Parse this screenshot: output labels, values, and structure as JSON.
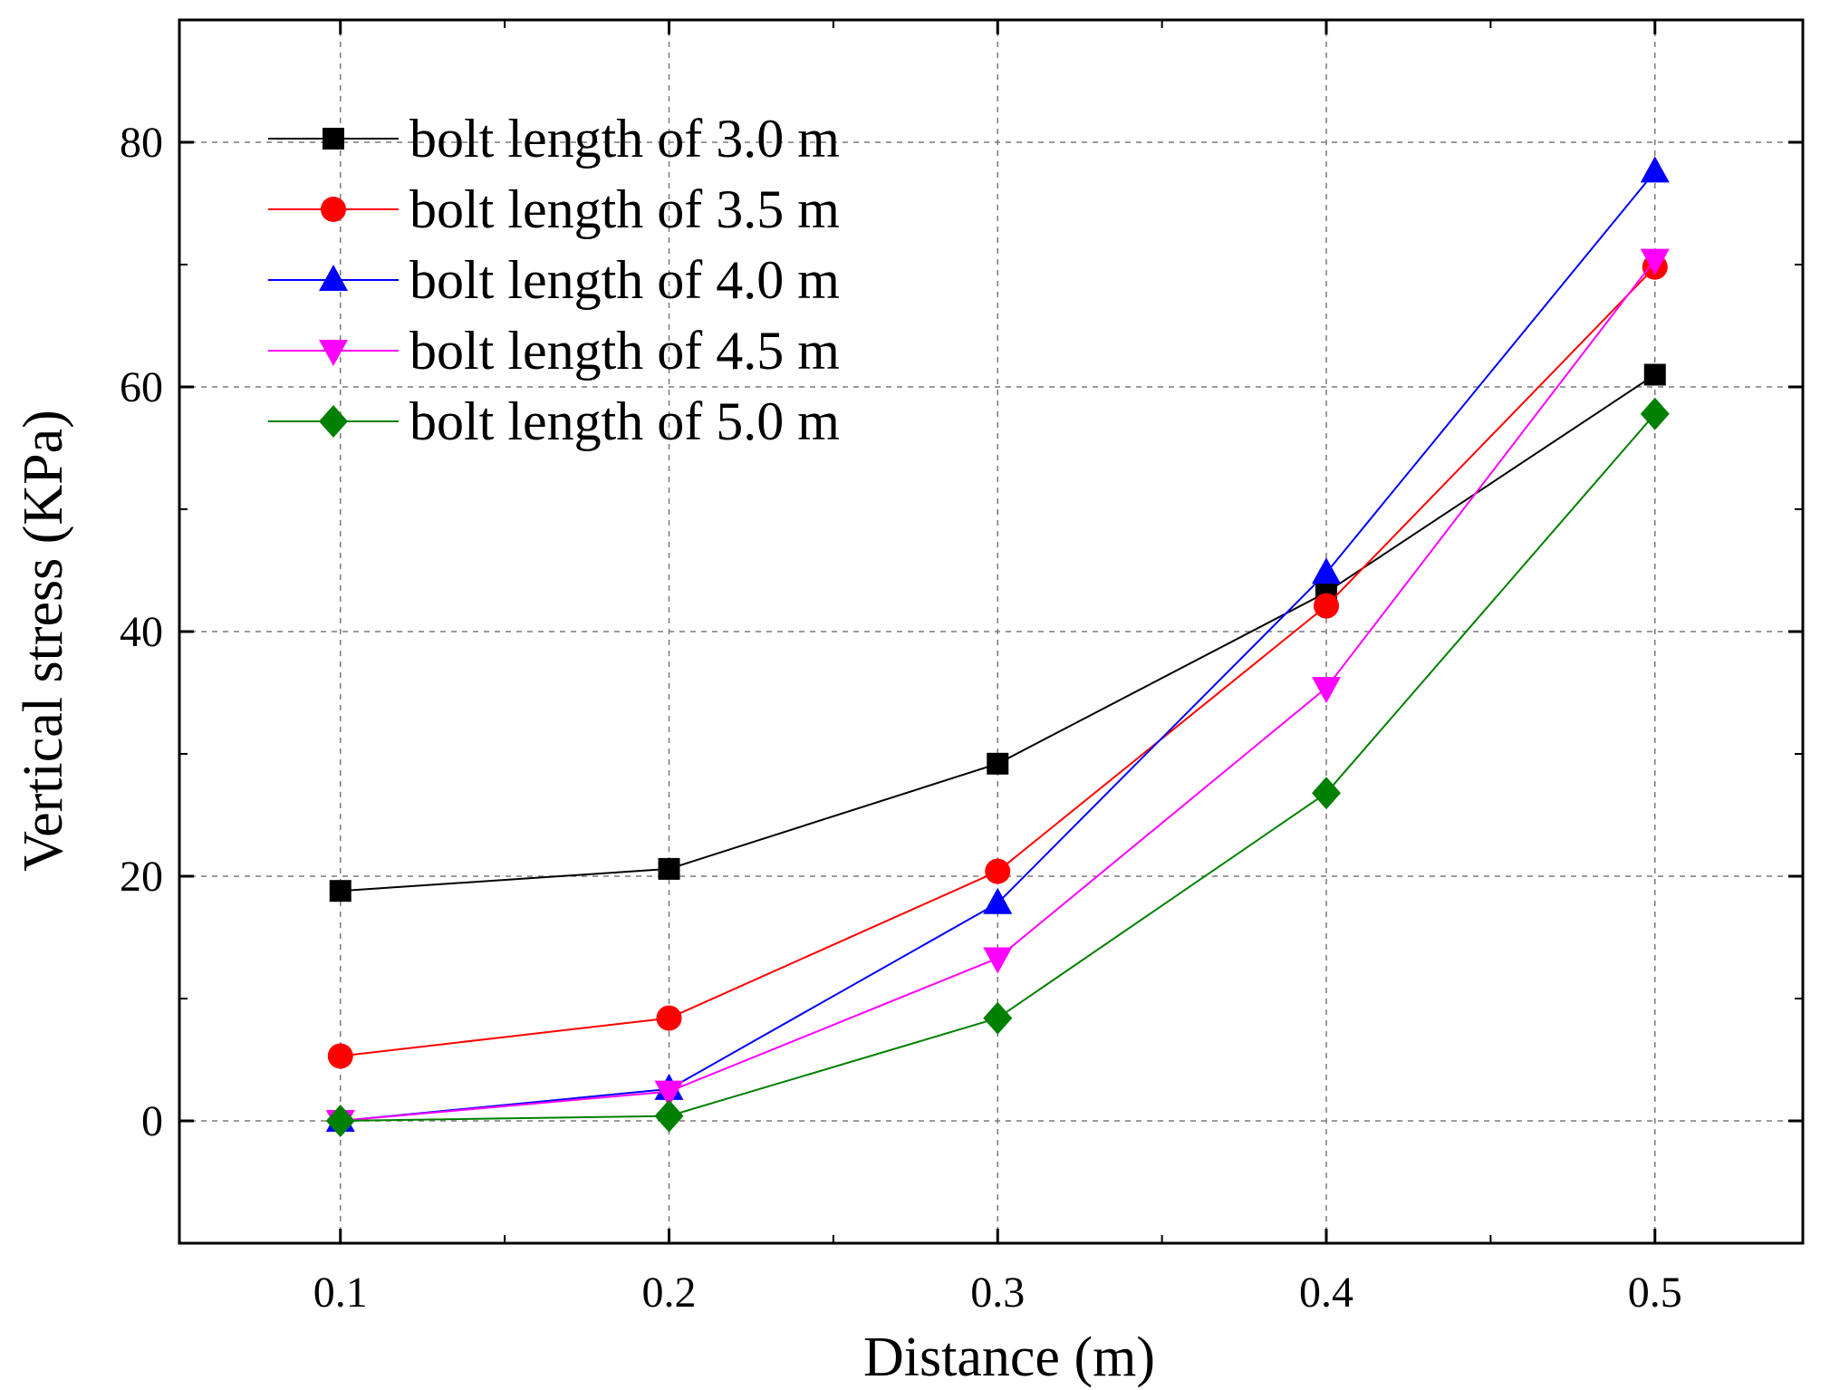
{
  "chart_data": {
    "type": "line",
    "title": "",
    "xlabel": "Distance (m)",
    "ylabel": "Vertical stress (KPa)",
    "x": [
      0.1,
      0.2,
      0.3,
      0.4,
      0.5
    ],
    "x_tick_labels": [
      "0.1",
      "0.2",
      "0.3",
      "0.4",
      "0.5"
    ],
    "y_ticks": [
      0,
      20,
      40,
      60,
      80
    ],
    "y_tick_labels": [
      "0",
      "20",
      "40",
      "60",
      "80"
    ],
    "xlim": [
      0.051,
      0.545
    ],
    "ylim": [
      -10,
      90
    ],
    "grid": true,
    "legend_position": "top-left",
    "series": [
      {
        "name": "bolt length of 3.0 m",
        "color": "#000000",
        "marker": "square",
        "values": [
          18.8,
          20.6,
          29.2,
          43.2,
          61.0
        ]
      },
      {
        "name": "bolt length of 3.5 m",
        "color": "#ff0000",
        "marker": "circle",
        "values": [
          5.3,
          8.4,
          20.4,
          42.1,
          69.8
        ]
      },
      {
        "name": "bolt length of 4.0 m",
        "color": "#0000ff",
        "marker": "triangle-up",
        "values": [
          0.0,
          2.6,
          17.8,
          44.8,
          77.6
        ]
      },
      {
        "name": "bolt length of 4.5 m",
        "color": "#ff00ff",
        "marker": "triangle-down",
        "values": [
          0.0,
          2.4,
          13.3,
          35.4,
          70.4
        ]
      },
      {
        "name": "bolt length of 5.0 m",
        "color": "#008000",
        "marker": "diamond",
        "values": [
          0.0,
          0.4,
          8.4,
          26.8,
          57.8
        ]
      }
    ]
  }
}
